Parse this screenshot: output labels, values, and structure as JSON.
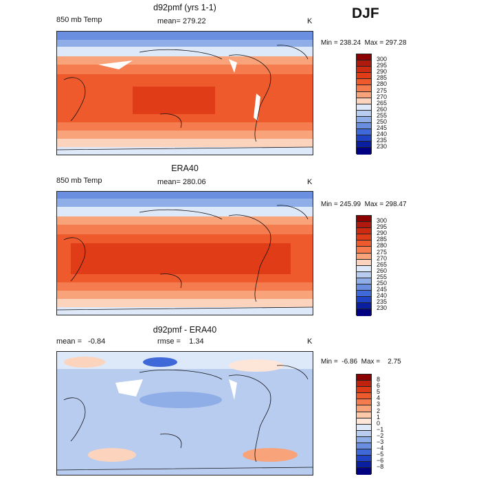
{
  "season": "DJF",
  "panels": [
    {
      "title": "d92pmf (yrs 1-1)",
      "left_label": "850 mb Temp",
      "center_label": "mean= 279.22",
      "unit": "K",
      "min_max": "Min = 238.24  Max = 297.28",
      "colorbar": {
        "labels": [
          "300",
          "295",
          "290",
          "285",
          "280",
          "275",
          "270",
          "265",
          "260",
          "255",
          "250",
          "245",
          "240",
          "235",
          "230"
        ],
        "colors": [
          "#8b0000",
          "#b0190d",
          "#cd2a12",
          "#e03c18",
          "#ee5a2b",
          "#f47c4e",
          "#f9a37a",
          "#fcd4bd",
          "#dde8f8",
          "#b8ccf0",
          "#8fade6",
          "#6a8ee0",
          "#3f68d8",
          "#1f43c4",
          "#0a1fa0",
          "#000080"
        ]
      }
    },
    {
      "title": "ERA40",
      "left_label": "850 mb Temp",
      "center_label": "mean= 280.06",
      "unit": "K",
      "min_max": "Min = 245.99  Max = 298.47",
      "colorbar": {
        "labels": [
          "300",
          "295",
          "290",
          "285",
          "280",
          "275",
          "270",
          "265",
          "260",
          "255",
          "250",
          "245",
          "240",
          "235",
          "230"
        ],
        "colors": [
          "#8b0000",
          "#b0190d",
          "#cd2a12",
          "#e03c18",
          "#ee5a2b",
          "#f47c4e",
          "#f9a37a",
          "#fcd4bd",
          "#dde8f8",
          "#b8ccf0",
          "#8fade6",
          "#6a8ee0",
          "#3f68d8",
          "#1f43c4",
          "#0a1fa0",
          "#000080"
        ]
      }
    },
    {
      "title": "d92pmf - ERA40",
      "left_label": "mean =   -0.84",
      "center_label": "rmse =    1.34",
      "unit": "K",
      "min_max": "Min =  -6.86  Max =    2.75",
      "colorbar": {
        "labels": [
          "8",
          "6",
          "5",
          "4",
          "3",
          "2",
          "1",
          "0",
          "−1",
          "−2",
          "−3",
          "−4",
          "−5",
          "−6",
          "−8"
        ],
        "colors": [
          "#8b0000",
          "#c0220f",
          "#dd3a18",
          "#ee5a2b",
          "#f47c4e",
          "#f9a37a",
          "#fcc9ab",
          "#fde6d8",
          "#dde8f8",
          "#b8ccf0",
          "#8fade6",
          "#6a8ee0",
          "#3f68d8",
          "#1f43c4",
          "#0a1fa0",
          "#000080"
        ]
      }
    }
  ]
}
